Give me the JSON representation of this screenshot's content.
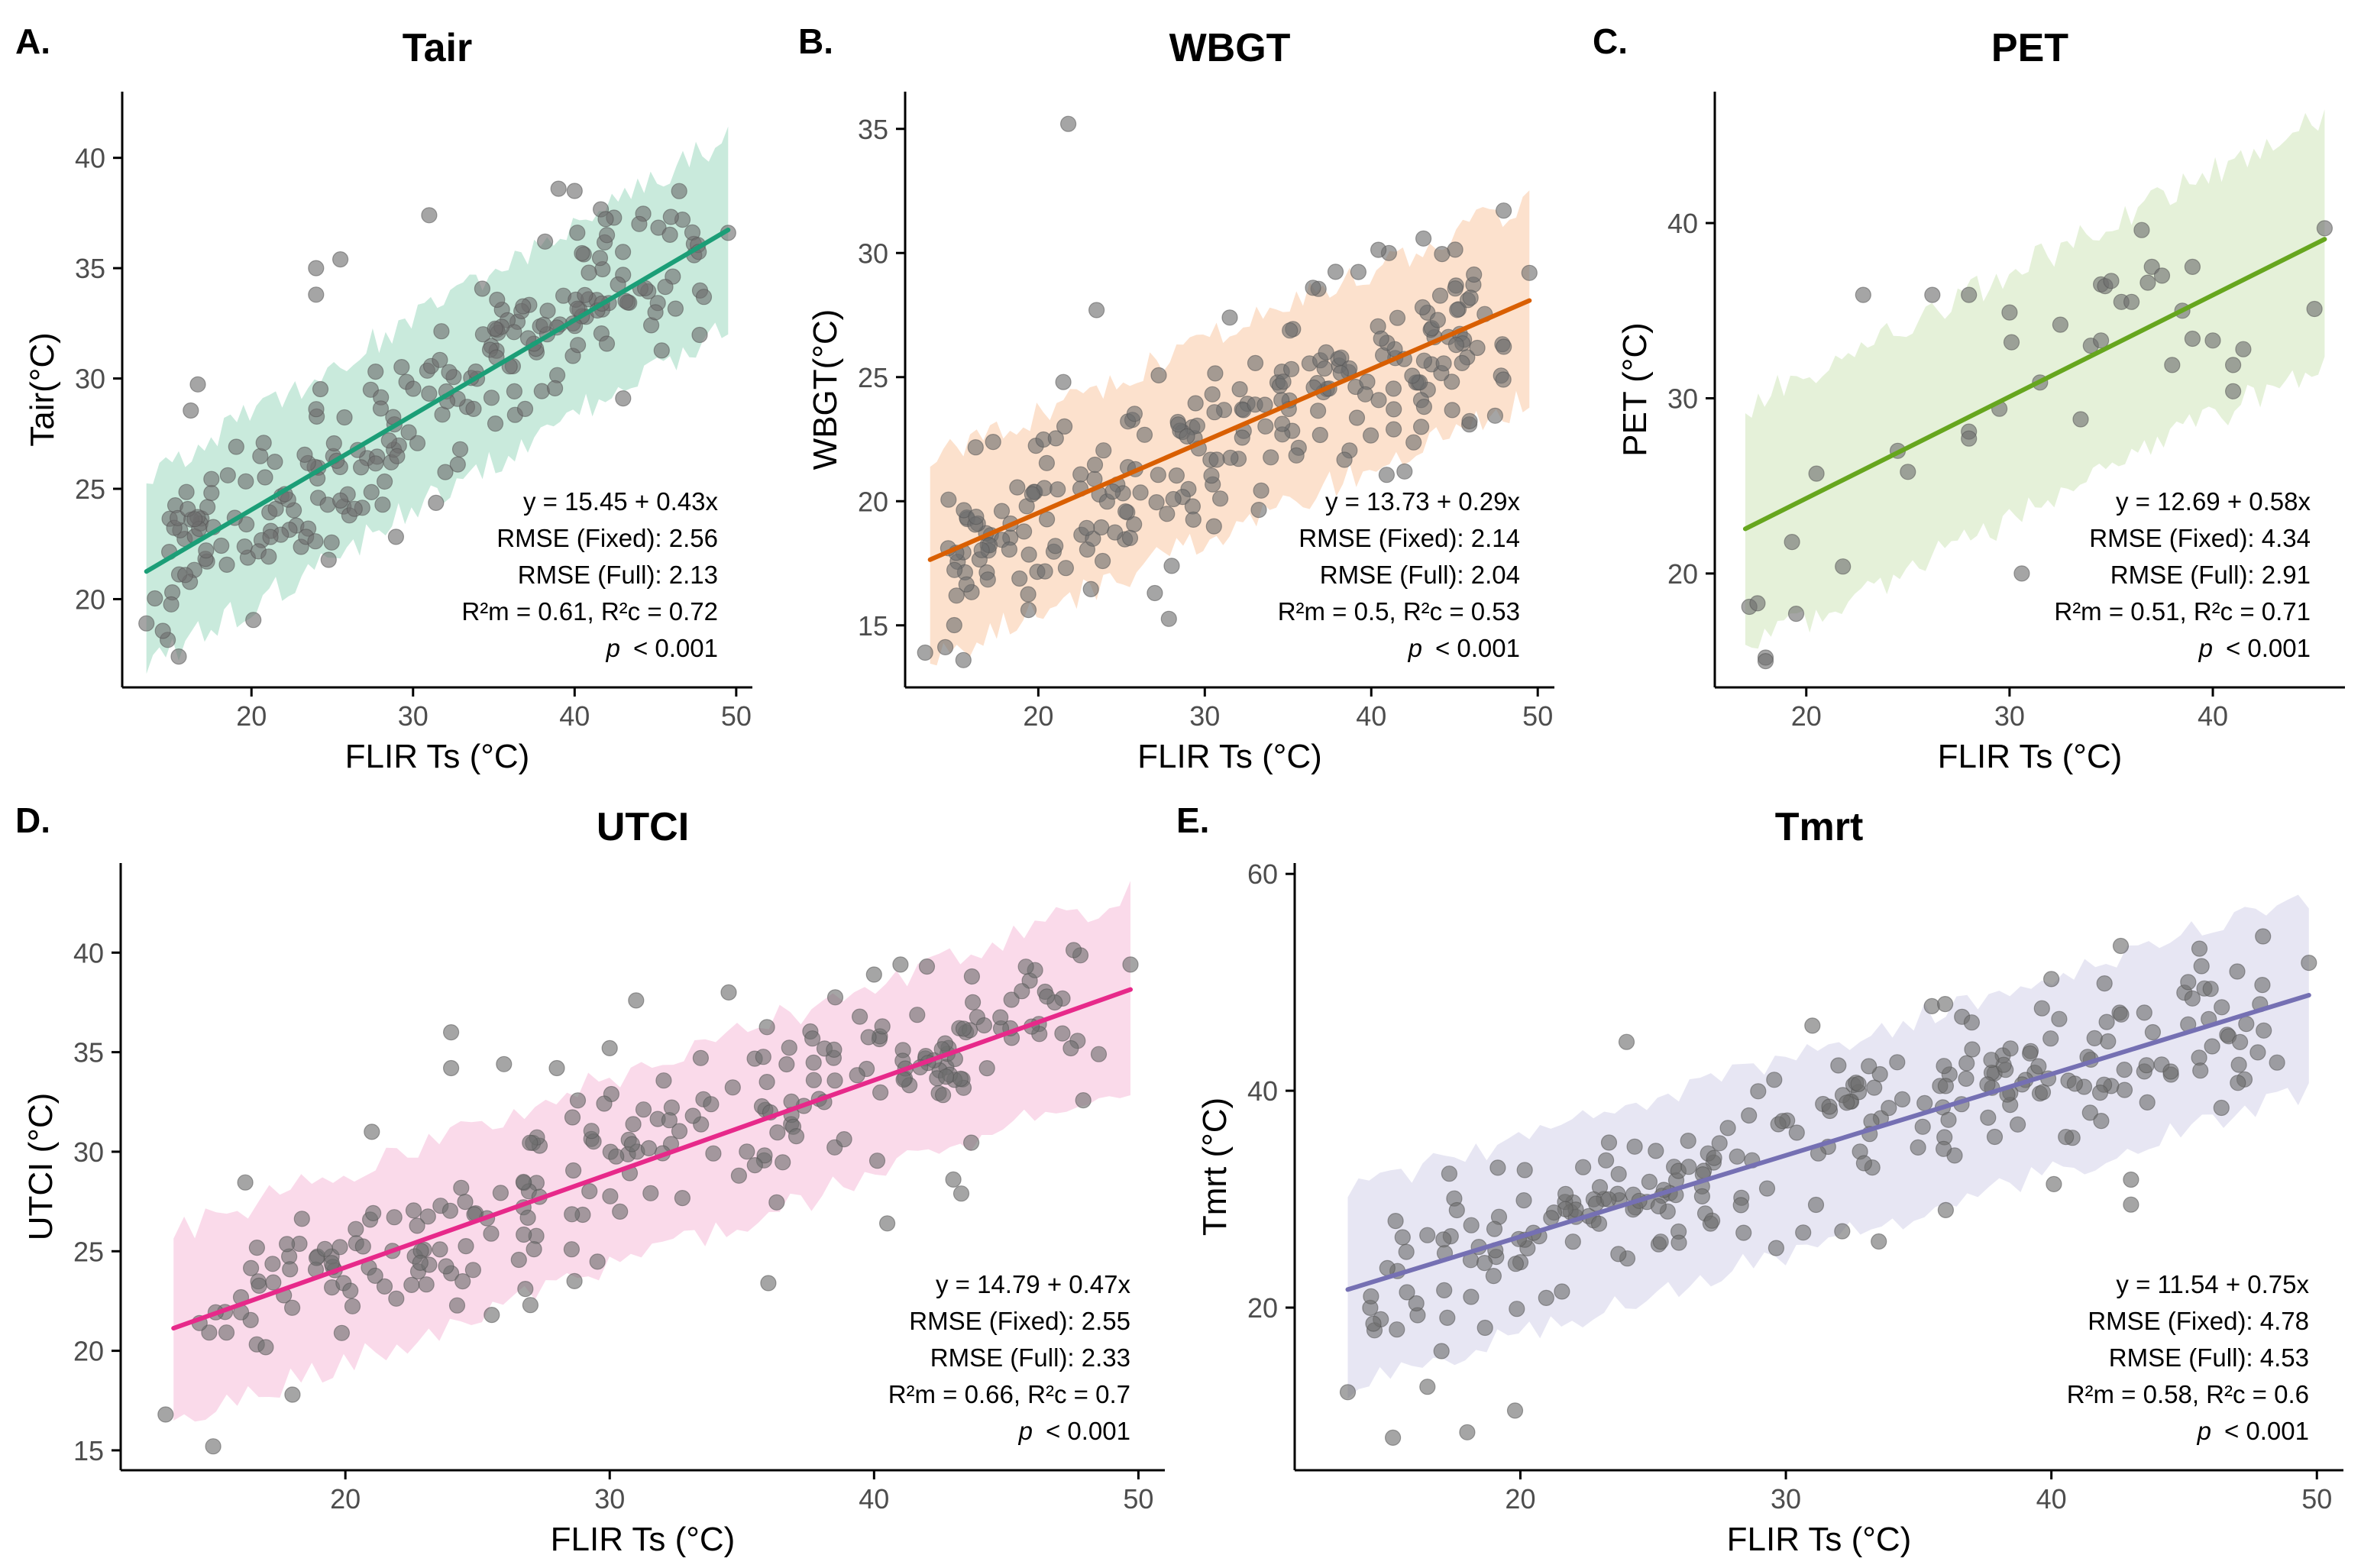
{
  "chart_data": [
    {
      "id": "A",
      "panel_label": "A.",
      "title": "Tair",
      "type": "scatter",
      "xlabel": "FLIR Ts (°C)",
      "ylabel": "Tair(°C)",
      "xlim": [
        12,
        51
      ],
      "ylim": [
        16,
        43
      ],
      "xticks": [
        20,
        30,
        40,
        50
      ],
      "yticks": [
        20,
        25,
        30,
        35,
        40
      ],
      "color": "#1b9e77",
      "band_color": "#bfe6d6",
      "fit": {
        "intercept": 15.45,
        "slope": 0.43,
        "x_range": [
          13.5,
          49.5
        ]
      },
      "band_halfwidth": 4.3,
      "band_wiggle": 0.7,
      "annotations": [
        "y = 15.45 + 0.43x",
        "RMSE (Fixed): 2.56",
        "RMSE (Full): 2.13",
        "R²m = 0.61, R²c = 0.72"
      ],
      "p_label": "p",
      "p_text": "< 0.001",
      "points": {
        "n": 230,
        "seed": 11,
        "x_range": [
          14,
          48
        ],
        "sd": 2.0
      },
      "extra_points": [
        [
          13.5,
          18.9
        ],
        [
          15.5,
          17.4
        ],
        [
          24,
          35
        ],
        [
          24,
          33.8
        ],
        [
          25.5,
          35.4
        ],
        [
          31,
          37.4
        ],
        [
          39,
          38.6
        ],
        [
          40,
          38.5
        ],
        [
          42,
          36.5
        ],
        [
          44,
          37
        ],
        [
          49.5,
          36.6
        ],
        [
          48,
          33.7
        ],
        [
          43,
          29.1
        ],
        [
          45,
          33
        ]
      ]
    },
    {
      "id": "B",
      "panel_label": "B.",
      "title": "WBGT",
      "type": "scatter",
      "xlabel": "FLIR Ts (°C)",
      "ylabel": "WBGT(°C)",
      "xlim": [
        12,
        51
      ],
      "ylim": [
        12.5,
        36.5
      ],
      "xticks": [
        20,
        30,
        40,
        50
      ],
      "yticks": [
        15,
        20,
        25,
        30,
        35
      ],
      "color": "#d95f02",
      "band_color": "#fbdcc4",
      "fit": {
        "intercept": 13.73,
        "slope": 0.29,
        "x_range": [
          13.5,
          49.5
        ]
      },
      "band_halfwidth": 4.0,
      "band_wiggle": 0.6,
      "annotations": [
        "y = 13.73 + 0.29x",
        "RMSE (Fixed): 2.14",
        "RMSE (Full): 2.04",
        "R²m = 0.5, R²c = 0.53"
      ],
      "p_label": "p",
      "p_text": "< 0.001",
      "points": {
        "n": 240,
        "seed": 23,
        "x_range": [
          14,
          48
        ],
        "sd": 1.8
      },
      "extra_points": [
        [
          21.8,
          35.2
        ],
        [
          13.2,
          13.9
        ],
        [
          15.5,
          13.6
        ],
        [
          23.5,
          27.7
        ],
        [
          31.5,
          27.4
        ],
        [
          36.5,
          28.6
        ],
        [
          49.5,
          29.2
        ],
        [
          44,
          27.3
        ],
        [
          42,
          21.2
        ],
        [
          27,
          16.3
        ],
        [
          21.5,
          24.8
        ]
      ]
    },
    {
      "id": "C",
      "panel_label": "C.",
      "title": "PET",
      "type": "scatter",
      "xlabel": "FLIR Ts (°C)",
      "ylabel": "PET (°C)",
      "xlim": [
        15.5,
        46.5
      ],
      "ylim": [
        13.5,
        47.5
      ],
      "xticks": [
        20,
        30,
        40
      ],
      "yticks": [
        20,
        30,
        40
      ],
      "color": "#66a61e",
      "band_color": "#e1efd2",
      "fit": {
        "intercept": 12.69,
        "slope": 0.58,
        "x_range": [
          17,
          45.5
        ]
      },
      "band_halfwidth": 7.0,
      "band_wiggle": 0.9,
      "annotations": [
        "y = 12.69 + 0.58x",
        "RMSE (Fixed): 4.34",
        "RMSE (Full): 2.91",
        "R²m = 0.51, R²c = 0.71"
      ],
      "p_label": "p",
      "p_text": "< 0.001",
      "points": {
        "n": 0,
        "seed": 5,
        "x_range": [
          17,
          45
        ],
        "sd": 2.5
      },
      "extra_points": [
        [
          17.2,
          18.1
        ],
        [
          17.6,
          18.3
        ],
        [
          18,
          15.2
        ],
        [
          18,
          15
        ],
        [
          19.3,
          21.8
        ],
        [
          19.5,
          17.7
        ],
        [
          20.5,
          25.7
        ],
        [
          21.8,
          20.4
        ],
        [
          22.8,
          35.9
        ],
        [
          24.5,
          27
        ],
        [
          25,
          25.8
        ],
        [
          26.2,
          35.9
        ],
        [
          28,
          28.1
        ],
        [
          28,
          27.7
        ],
        [
          28,
          35.9
        ],
        [
          29.5,
          29.4
        ],
        [
          30,
          34.9
        ],
        [
          30.1,
          33.2
        ],
        [
          30.6,
          20
        ],
        [
          31.5,
          30.9
        ],
        [
          32.5,
          34.2
        ],
        [
          33.5,
          28.8
        ],
        [
          34,
          33
        ],
        [
          34.5,
          36.5
        ],
        [
          34.5,
          33.3
        ],
        [
          34.7,
          36.4
        ],
        [
          35,
          36.7
        ],
        [
          35.5,
          35.5
        ],
        [
          36,
          35.5
        ],
        [
          36.5,
          39.6
        ],
        [
          36.8,
          36.6
        ],
        [
          37,
          37.5
        ],
        [
          37.5,
          37
        ],
        [
          38,
          31.9
        ],
        [
          38.5,
          35
        ],
        [
          39,
          37.5
        ],
        [
          39,
          33.4
        ],
        [
          40,
          33.3
        ],
        [
          41,
          31.9
        ],
        [
          41,
          30.4
        ],
        [
          41.5,
          32.8
        ],
        [
          45,
          35.1
        ],
        [
          45.5,
          39.7
        ]
      ]
    },
    {
      "id": "D",
      "panel_label": "D.",
      "title": "UTCI",
      "type": "scatter",
      "xlabel": "FLIR Ts (°C)",
      "ylabel": "UTCI (°C)",
      "xlim": [
        11.5,
        51
      ],
      "ylim": [
        14,
        44.5
      ],
      "xticks": [
        20,
        30,
        40,
        50
      ],
      "yticks": [
        15,
        20,
        25,
        30,
        35,
        40
      ],
      "color": "#e7298a",
      "band_color": "#f9d3e6",
      "fit": {
        "intercept": 14.79,
        "slope": 0.47,
        "x_range": [
          13.5,
          49.7
        ]
      },
      "band_halfwidth": 4.8,
      "band_wiggle": 0.7,
      "annotations": [
        "y = 14.79 + 0.47x",
        "RMSE (Fixed): 2.55",
        "RMSE (Full): 2.33",
        "R²m = 0.66, R²c = 0.7"
      ],
      "p_label": "p",
      "p_text": "< 0.001",
      "points": {
        "n": 240,
        "seed": 37,
        "x_range": [
          14,
          48
        ],
        "sd": 2.0
      },
      "extra_points": [
        [
          13.2,
          16.8
        ],
        [
          15,
          15.2
        ],
        [
          18,
          17.8
        ],
        [
          21,
          31
        ],
        [
          24,
          36
        ],
        [
          24,
          34.2
        ],
        [
          26,
          34.4
        ],
        [
          28,
          34.2
        ],
        [
          30,
          35.2
        ],
        [
          31,
          37.6
        ],
        [
          34.5,
          38
        ],
        [
          36,
          23.4
        ],
        [
          40.5,
          26.4
        ],
        [
          40,
          38.9
        ],
        [
          41,
          39.4
        ],
        [
          42,
          39.3
        ],
        [
          43,
          28.6
        ],
        [
          43.3,
          27.9
        ],
        [
          48.5,
          34.9
        ],
        [
          49.7,
          39.4
        ],
        [
          27,
          22.3
        ]
      ]
    },
    {
      "id": "E",
      "panel_label": "E.",
      "title": "Tmrt",
      "type": "scatter",
      "xlabel": "FLIR Ts (°C)",
      "ylabel": "Tmrt (°C)",
      "xlim": [
        11.5,
        51
      ],
      "ylim": [
        5,
        61
      ],
      "xticks": [
        20,
        30,
        40,
        50
      ],
      "yticks": [
        20,
        40,
        60
      ],
      "color": "#7570b3",
      "band_color": "#e3e2f1",
      "fit": {
        "intercept": 11.54,
        "slope": 0.75,
        "x_range": [
          13.5,
          49.7
        ]
      },
      "band_halfwidth": 9.0,
      "band_wiggle": 1.2,
      "annotations": [
        "y = 11.54 + 0.75x",
        "RMSE (Fixed): 4.78",
        "RMSE (Full): 4.53",
        "R²m = 0.58, R²c = 0.6"
      ],
      "p_label": "p",
      "p_text": "< 0.001",
      "points": {
        "n": 250,
        "seed": 53,
        "x_range": [
          14,
          48
        ],
        "sd": 3.6
      },
      "extra_points": [
        [
          13.5,
          12.2
        ],
        [
          15.2,
          8
        ],
        [
          16.5,
          12.7
        ],
        [
          18,
          8.5
        ],
        [
          19.8,
          10.5
        ],
        [
          24,
          44.5
        ],
        [
          31,
          46
        ],
        [
          35.5,
          47.8
        ],
        [
          36,
          48
        ],
        [
          37,
          46.3
        ],
        [
          40,
          50.3
        ],
        [
          42,
          49.9
        ],
        [
          43.5,
          47.2
        ],
        [
          46,
          49.4
        ],
        [
          47,
          51
        ],
        [
          49.7,
          51.8
        ],
        [
          48.5,
          42.6
        ],
        [
          43,
          31.8
        ],
        [
          43,
          29.5
        ],
        [
          33.5,
          26.1
        ]
      ]
    }
  ]
}
